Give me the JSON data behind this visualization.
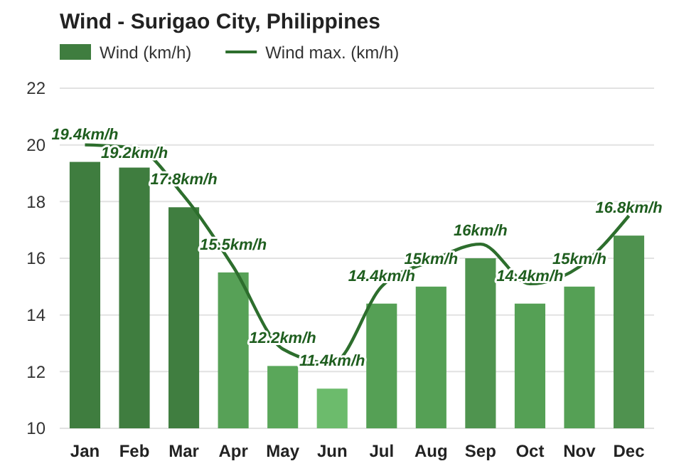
{
  "chart_data": {
    "type": "bar",
    "title": "Wind - Surigao City, Philippines",
    "categories": [
      "Jan",
      "Feb",
      "Mar",
      "Apr",
      "May",
      "Jun",
      "Jul",
      "Aug",
      "Sep",
      "Oct",
      "Nov",
      "Dec"
    ],
    "series": [
      {
        "name": "Wind (km/h)",
        "color": "#3f7d3f",
        "colors": [
          "#3f7d3f",
          "#3f7d3f",
          "#407e40",
          "#57a157",
          "#5aa75a",
          "#6cbb6c",
          "#55a055",
          "#55a055",
          "#4f944f",
          "#55a055",
          "#55a055",
          "#4f924f"
        ],
        "values": [
          19.4,
          19.2,
          17.8,
          15.5,
          12.2,
          11.4,
          14.4,
          15,
          16,
          14.4,
          15,
          16.8
        ],
        "value_labels": [
          "19.4km/h",
          "19.2km/h",
          "17.8km/h",
          "15.5km/h",
          "12.2km/h",
          "11.4km/h",
          "14.4km/h",
          "15km/h",
          "16km/h",
          "14.4km/h",
          "15km/h",
          "16.8km/h"
        ]
      },
      {
        "name": "Wind max. (km/h)",
        "type": "line",
        "color": "#2d6e2d",
        "values": [
          20,
          19.9,
          18.2,
          15.7,
          12.8,
          12.3,
          15,
          15.9,
          16.5,
          15.1,
          15.7,
          17.5
        ]
      }
    ],
    "ylim": [
      10,
      22
    ],
    "yticks": [
      10,
      12,
      14,
      16,
      18,
      20,
      22
    ],
    "grid": "y",
    "legend": "top left",
    "marker": "none"
  }
}
